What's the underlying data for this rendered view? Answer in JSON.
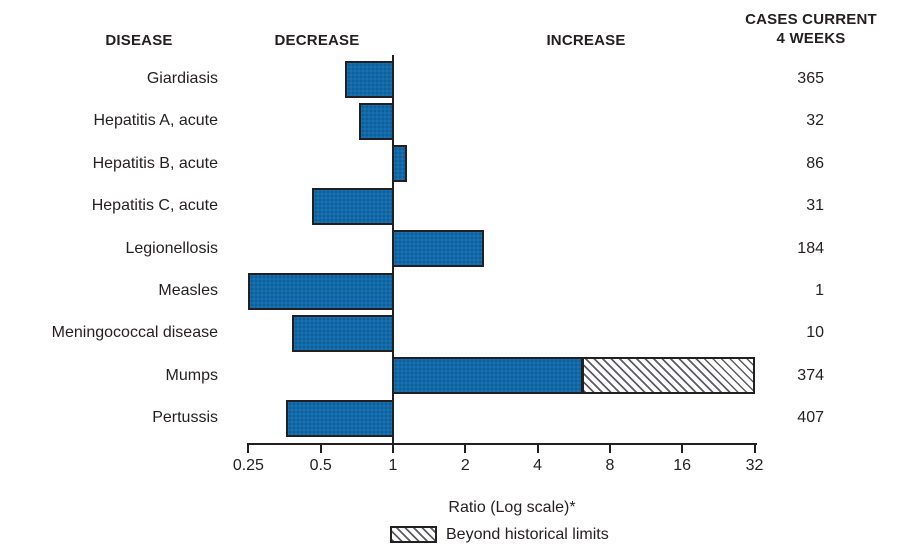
{
  "headers": {
    "disease": "DISEASE",
    "decrease": "DECREASE",
    "increase": "INCREASE",
    "cases_line1": "CASES CURRENT",
    "cases_line2": "4 WEEKS"
  },
  "axis": {
    "label": "Ratio (Log scale)*",
    "tick_labels": [
      "0.25",
      "0.5",
      "1",
      "2",
      "4",
      "8",
      "16",
      "32"
    ],
    "tick_values": [
      0.25,
      0.5,
      1,
      2,
      4,
      8,
      16,
      32
    ]
  },
  "legend": {
    "beyond_label": "Beyond historical limits"
  },
  "colors": {
    "ink": "#231f20",
    "bar_blue": "#1166bf",
    "hatch_stripe": "#5c5c66"
  },
  "chart_data": {
    "type": "bar",
    "orientation": "horizontal",
    "scale": "log2",
    "title": "",
    "xlabel": "Ratio (Log scale)*",
    "xlim": [
      0.25,
      32
    ],
    "baseline": 1,
    "legend_position": "bottom",
    "rows": [
      {
        "disease": "Giardiasis",
        "ratio": 0.63,
        "cases": 365,
        "beyond_historical_limits": false
      },
      {
        "disease": "Hepatitis A, acute",
        "ratio": 0.72,
        "cases": 32,
        "beyond_historical_limits": false
      },
      {
        "disease": "Hepatitis B, acute",
        "ratio": 1.14,
        "cases": 86,
        "beyond_historical_limits": false
      },
      {
        "disease": "Hepatitis C, acute",
        "ratio": 0.46,
        "cases": 31,
        "beyond_historical_limits": false
      },
      {
        "disease": "Legionellosis",
        "ratio": 2.4,
        "cases": 184,
        "beyond_historical_limits": false
      },
      {
        "disease": "Measles",
        "ratio": 0.25,
        "cases": 1,
        "beyond_historical_limits": false
      },
      {
        "disease": "Meningococcal disease",
        "ratio": 0.38,
        "cases": 10,
        "beyond_historical_limits": false
      },
      {
        "disease": "Mumps",
        "ratio": 32,
        "historical_limit": 6.2,
        "cases": 374,
        "beyond_historical_limits": true
      },
      {
        "disease": "Pertussis",
        "ratio": 0.36,
        "cases": 407,
        "beyond_historical_limits": false
      }
    ]
  }
}
